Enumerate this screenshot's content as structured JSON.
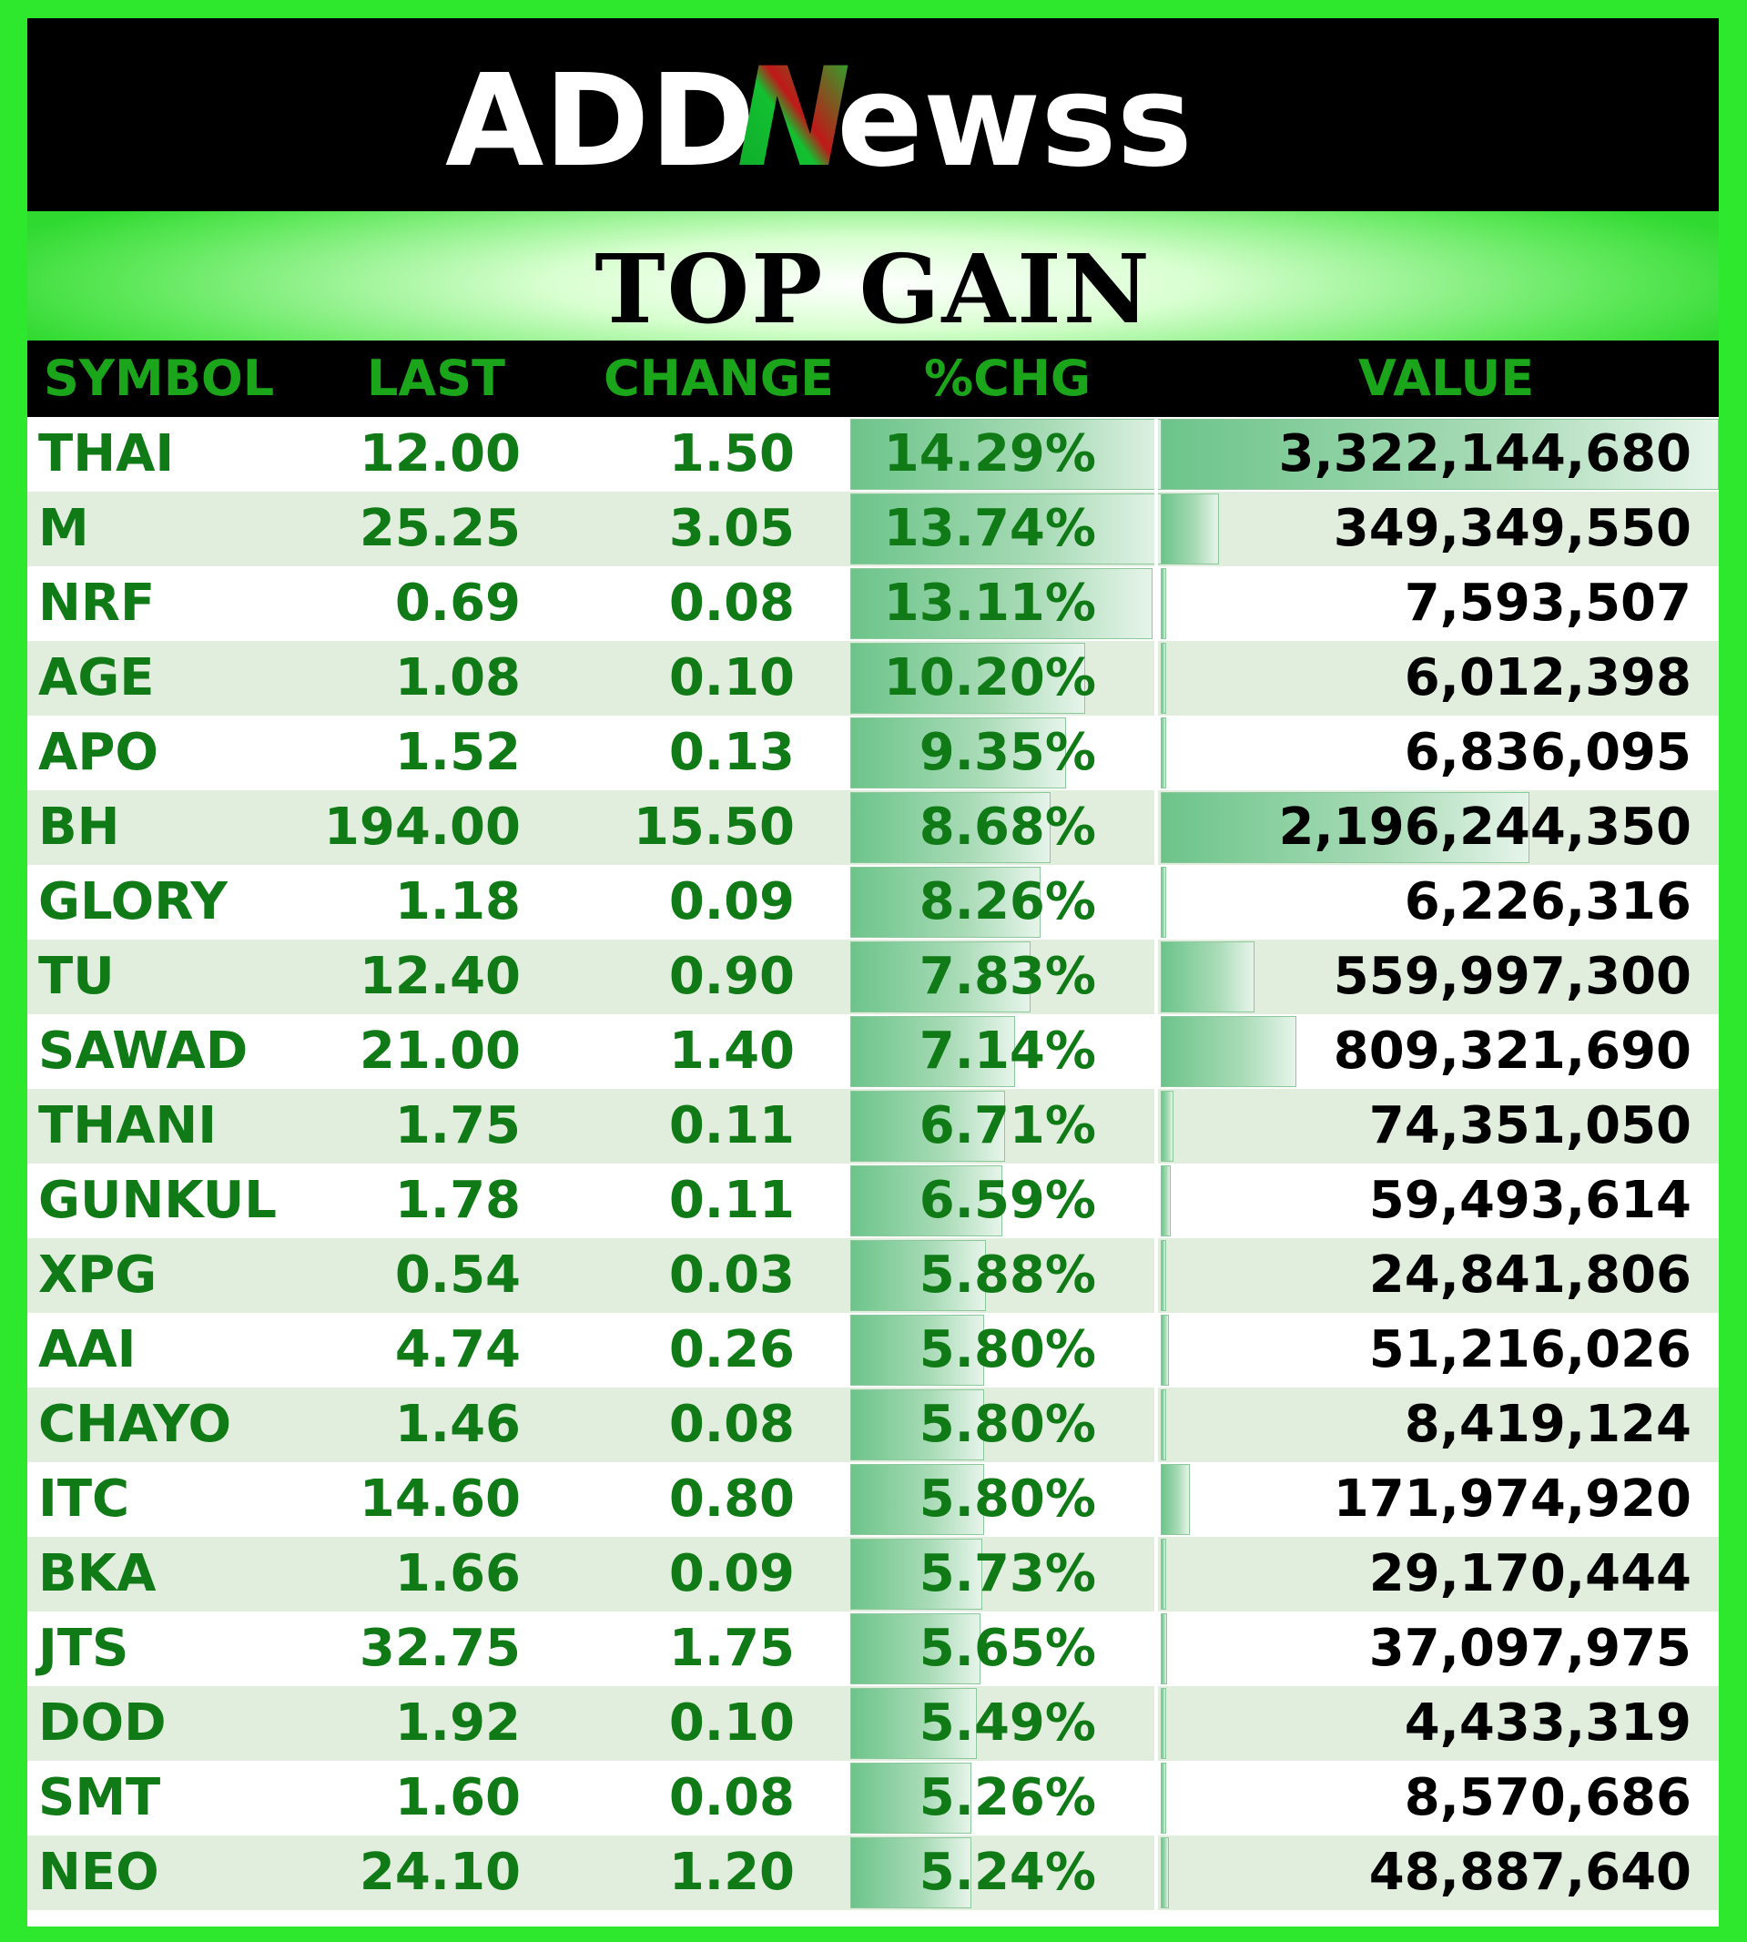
{
  "brand": {
    "logo_text": "ADDNewss",
    "left": "ADD",
    "accent": "N",
    "right": "ewss"
  },
  "title": "TOP GAIN",
  "columns": {
    "symbol": "SYMBOL",
    "last": "LAST",
    "change": "CHANGE",
    "pct": "%CHG",
    "value": "VALUE"
  },
  "colors": {
    "frame": "#2ee82e",
    "header_text": "#1aa51a",
    "row_text": "#0f7a16",
    "row_alt": "#e2eedd",
    "bar": "#6cc48a"
  },
  "rows": [
    {
      "symbol": "THAI",
      "last": "12.00",
      "change": "1.50",
      "pct": "14.29%",
      "value": "3,322,144,680",
      "pct_num": 14.29,
      "value_num": 3322144680
    },
    {
      "symbol": "M",
      "last": "25.25",
      "change": "3.05",
      "pct": "13.74%",
      "value": "349,349,550",
      "pct_num": 13.74,
      "value_num": 349349550
    },
    {
      "symbol": "NRF",
      "last": "0.69",
      "change": "0.08",
      "pct": "13.11%",
      "value": "7,593,507",
      "pct_num": 13.11,
      "value_num": 7593507
    },
    {
      "symbol": "AGE",
      "last": "1.08",
      "change": "0.10",
      "pct": "10.20%",
      "value": "6,012,398",
      "pct_num": 10.2,
      "value_num": 6012398
    },
    {
      "symbol": "APO",
      "last": "1.52",
      "change": "0.13",
      "pct": "9.35%",
      "value": "6,836,095",
      "pct_num": 9.35,
      "value_num": 6836095
    },
    {
      "symbol": "BH",
      "last": "194.00",
      "change": "15.50",
      "pct": "8.68%",
      "value": "2,196,244,350",
      "pct_num": 8.68,
      "value_num": 2196244350
    },
    {
      "symbol": "GLORY",
      "last": "1.18",
      "change": "0.09",
      "pct": "8.26%",
      "value": "6,226,316",
      "pct_num": 8.26,
      "value_num": 6226316
    },
    {
      "symbol": "TU",
      "last": "12.40",
      "change": "0.90",
      "pct": "7.83%",
      "value": "559,997,300",
      "pct_num": 7.83,
      "value_num": 559997300
    },
    {
      "symbol": "SAWAD",
      "last": "21.00",
      "change": "1.40",
      "pct": "7.14%",
      "value": "809,321,690",
      "pct_num": 7.14,
      "value_num": 809321690
    },
    {
      "symbol": "THANI",
      "last": "1.75",
      "change": "0.11",
      "pct": "6.71%",
      "value": "74,351,050",
      "pct_num": 6.71,
      "value_num": 74351050
    },
    {
      "symbol": "GUNKUL",
      "last": "1.78",
      "change": "0.11",
      "pct": "6.59%",
      "value": "59,493,614",
      "pct_num": 6.59,
      "value_num": 59493614
    },
    {
      "symbol": "XPG",
      "last": "0.54",
      "change": "0.03",
      "pct": "5.88%",
      "value": "24,841,806",
      "pct_num": 5.88,
      "value_num": 24841806
    },
    {
      "symbol": "AAI",
      "last": "4.74",
      "change": "0.26",
      "pct": "5.80%",
      "value": "51,216,026",
      "pct_num": 5.8,
      "value_num": 51216026
    },
    {
      "symbol": "CHAYO",
      "last": "1.46",
      "change": "0.08",
      "pct": "5.80%",
      "value": "8,419,124",
      "pct_num": 5.8,
      "value_num": 8419124
    },
    {
      "symbol": "ITC",
      "last": "14.60",
      "change": "0.80",
      "pct": "5.80%",
      "value": "171,974,920",
      "pct_num": 5.8,
      "value_num": 171974920
    },
    {
      "symbol": "BKA",
      "last": "1.66",
      "change": "0.09",
      "pct": "5.73%",
      "value": "29,170,444",
      "pct_num": 5.73,
      "value_num": 29170444
    },
    {
      "symbol": "JTS",
      "last": "32.75",
      "change": "1.75",
      "pct": "5.65%",
      "value": "37,097,975",
      "pct_num": 5.65,
      "value_num": 37097975
    },
    {
      "symbol": "DOD",
      "last": "1.92",
      "change": "0.10",
      "pct": "5.49%",
      "value": "4,433,319",
      "pct_num": 5.49,
      "value_num": 4433319
    },
    {
      "symbol": "SMT",
      "last": "1.60",
      "change": "0.08",
      "pct": "5.26%",
      "value": "8,570,686",
      "pct_num": 5.26,
      "value_num": 8570686
    },
    {
      "symbol": "NEO",
      "last": "24.10",
      "change": "1.20",
      "pct": "5.24%",
      "value": "48,887,640",
      "pct_num": 5.24,
      "value_num": 48887640
    }
  ]
}
